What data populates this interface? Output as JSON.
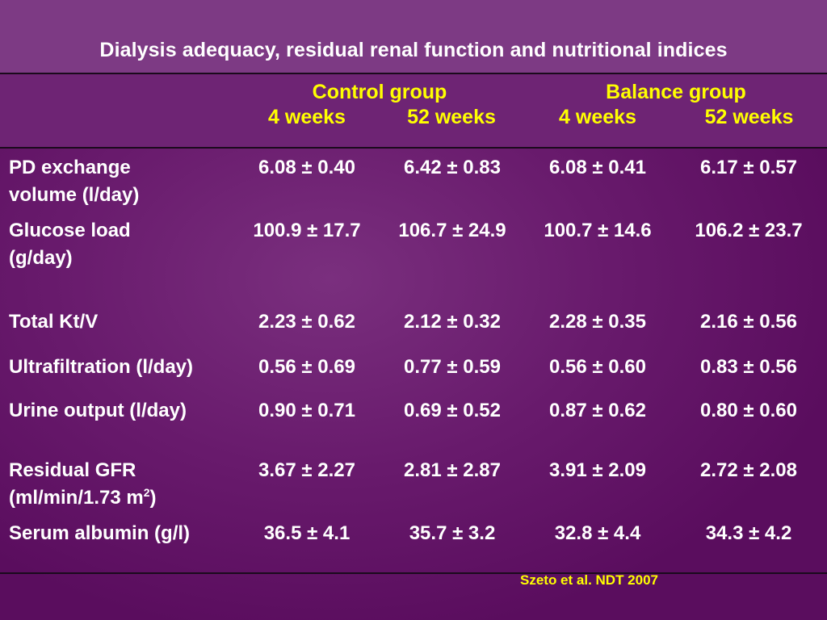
{
  "title": "Dialysis adequacy, residual renal function and nutritional indices",
  "groups": [
    {
      "name": "Control group",
      "periods": [
        "4 weeks",
        "52 weeks"
      ]
    },
    {
      "name": "Balance group",
      "periods": [
        "4 weeks",
        "52 weeks"
      ]
    }
  ],
  "rows": [
    {
      "label_line1": "PD exchange",
      "label_line2": "volume (l/day)",
      "values": [
        "6.08 ± 0.40",
        "6.42 ± 0.83",
        "6.08 ± 0.41",
        "6.17 ± 0.57"
      ]
    },
    {
      "label_line1": "Glucose load",
      "label_line2": "(g/day)",
      "values": [
        "100.9 ± 17.7",
        "106.7 ± 24.9",
        "100.7 ± 14.6",
        "106.2 ± 23.7"
      ]
    },
    {
      "label_line1": "Total Kt/V",
      "label_line2": "",
      "values": [
        "2.23 ± 0.62",
        "2.12 ± 0.32",
        "2.28 ± 0.35",
        "2.16 ± 0.56"
      ]
    },
    {
      "label_line1": "Ultrafiltration (l/day)",
      "label_line2": "",
      "values": [
        "0.56 ± 0.69",
        "0.77 ± 0.59",
        "0.56 ± 0.60",
        "0.83 ± 0.56"
      ]
    },
    {
      "label_line1": "Urine output (l/day)",
      "label_line2": "",
      "values": [
        "0.90 ± 0.71",
        "0.69 ± 0.52",
        "0.87 ± 0.62",
        "0.80 ± 0.60"
      ]
    },
    {
      "label_line1": "Residual GFR",
      "label_line2_main": "(ml/min/1.73 m",
      "label_line2_sup": "2",
      "label_line2_end": ")",
      "values": [
        "3.67 ± 2.27",
        "2.81 ± 2.87",
        "3.91 ± 2.09",
        "2.72 ± 2.08"
      ]
    },
    {
      "label_line1": "Serum albumin (g/l)",
      "label_line2": "",
      "values": [
        "36.5 ± 4.1",
        "35.7 ± 3.2",
        "32.8 ± 4.4",
        "34.3 ± 4.2"
      ]
    }
  ],
  "citation": "Szeto et al. NDT 2007",
  "colors": {
    "background": "#621266",
    "header_text": "#ffff00",
    "body_text": "#ffffff",
    "rule": "#1a0a1c"
  }
}
